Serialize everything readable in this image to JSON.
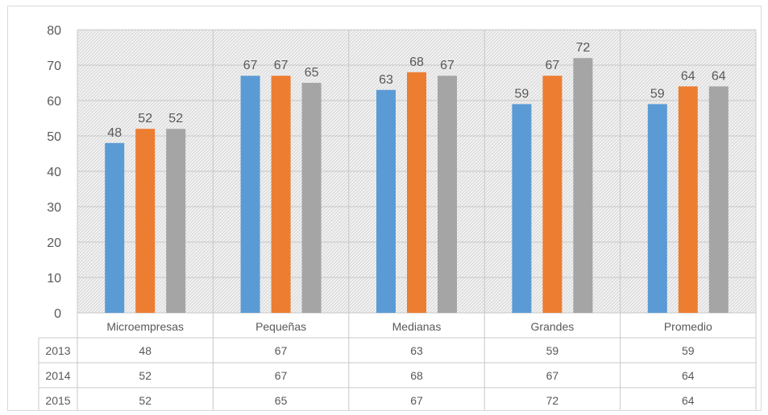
{
  "chart_data": {
    "type": "bar",
    "title": "",
    "xlabel": "",
    "ylabel": "",
    "ylim": [
      0,
      80
    ],
    "yticks": [
      0,
      10,
      20,
      30,
      40,
      50,
      60,
      70,
      80
    ],
    "grid": true,
    "legend": "data-table-below",
    "categories": [
      "Microempresas",
      "Pequeñas",
      "Medianas",
      "Grandes",
      "Promedio"
    ],
    "series": [
      {
        "name": "2013",
        "color": "#5b9bd5",
        "values": [
          48,
          67,
          63,
          59,
          59
        ]
      },
      {
        "name": "2014",
        "color": "#ed7d31",
        "values": [
          52,
          67,
          68,
          67,
          64
        ]
      },
      {
        "name": "2015",
        "color": "#a5a5a5",
        "values": [
          52,
          65,
          67,
          72,
          64
        ]
      }
    ]
  }
}
